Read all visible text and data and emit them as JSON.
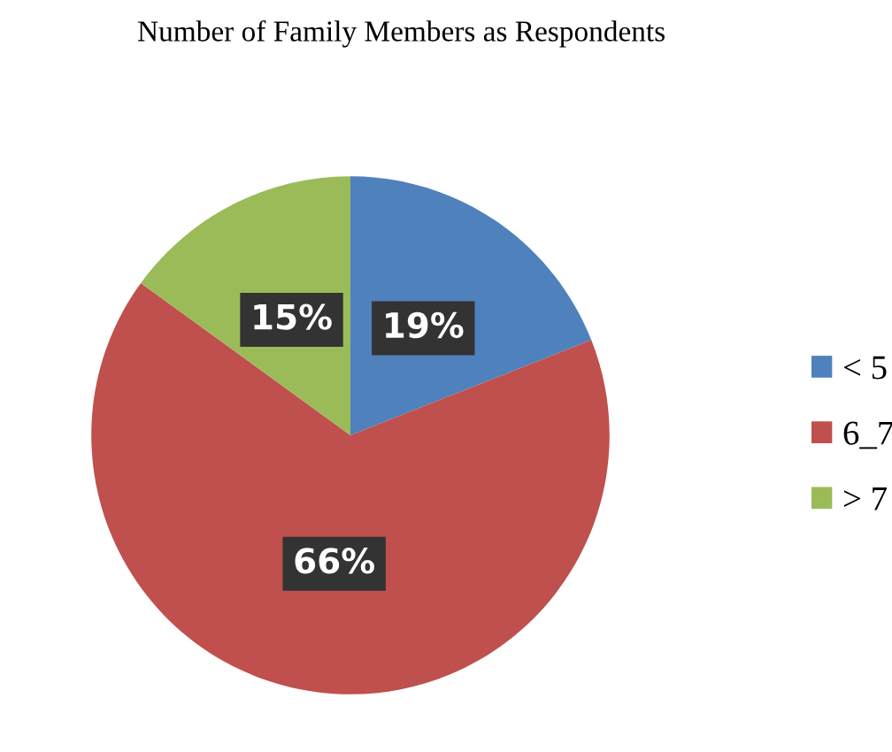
{
  "chart_data": {
    "type": "pie",
    "title": "Number of Family Members as Respondents",
    "categories": [
      "< 5",
      "6_7",
      "> 7"
    ],
    "values": [
      19,
      66,
      15
    ],
    "colors": [
      "#4f81bd",
      "#c0504d",
      "#9bbb59"
    ],
    "value_labels": [
      "19%",
      "66%",
      "15%"
    ],
    "legend": "right"
  }
}
